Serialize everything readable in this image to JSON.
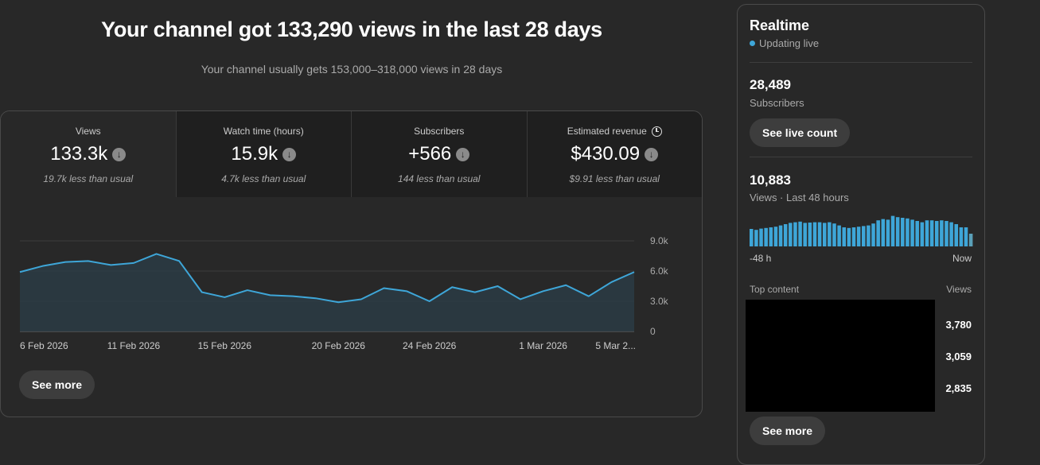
{
  "headline": "Your channel got 133,290 views in the last 28 days",
  "subline": "Your channel usually gets 153,000–318,000 views in 28 days",
  "metrics": [
    {
      "label": "Views",
      "value": "133.3k",
      "note": "19.7k less than usual",
      "icon": "down-arrow-icon"
    },
    {
      "label": "Watch time (hours)",
      "value": "15.9k",
      "note": "4.7k less than usual",
      "icon": "down-arrow-icon"
    },
    {
      "label": "Subscribers",
      "value": "+566",
      "note": "144 less than usual",
      "icon": "down-arrow-icon"
    },
    {
      "label": "Estimated revenue",
      "value": "$430.09",
      "note": "$9.91 less than usual",
      "icon": "down-arrow-icon",
      "label_icon": "clock-icon"
    }
  ],
  "chart_data": {
    "type": "area",
    "x": [
      "6 Feb",
      "7 Feb",
      "8 Feb",
      "9 Feb",
      "10 Feb",
      "11 Feb",
      "12 Feb",
      "13 Feb",
      "14 Feb",
      "15 Feb",
      "16 Feb",
      "17 Feb",
      "18 Feb",
      "19 Feb",
      "20 Feb",
      "21 Feb",
      "22 Feb",
      "23 Feb",
      "24 Feb",
      "25 Feb",
      "26 Feb",
      "27 Feb",
      "28 Feb",
      "1 Mar",
      "2 Mar",
      "3 Mar",
      "4 Mar",
      "5 Mar"
    ],
    "series": [
      {
        "values": [
          5900,
          6500,
          6900,
          7000,
          6600,
          6800,
          7700,
          7000,
          3900,
          3400,
          4100,
          3600,
          3500,
          3300,
          2900,
          3200,
          4300,
          4000,
          3000,
          4400,
          3900,
          4500,
          3200,
          4000,
          4600,
          3500,
          4900,
          5900
        ]
      }
    ],
    "ylim": [
      0,
      9000
    ],
    "y_ticks": [
      "9.0k",
      "6.0k",
      "3.0k",
      "0"
    ],
    "x_tick_labels": [
      {
        "index": 0,
        "label": "6 Feb 2026"
      },
      {
        "index": 5,
        "label": "11 Feb 2026"
      },
      {
        "index": 9,
        "label": "15 Feb 2026"
      },
      {
        "index": 14,
        "label": "20 Feb 2026"
      },
      {
        "index": 18,
        "label": "24 Feb 2026"
      },
      {
        "index": 23,
        "label": "1 Mar 2026"
      },
      {
        "index": 27,
        "label": "5 Mar 2..."
      }
    ],
    "line_color": "#3ea6d8",
    "fill_color": "#2a3b44",
    "grid": true
  },
  "see_more_label": "See more",
  "realtime": {
    "title": "Realtime",
    "status": "Updating live",
    "subscribers_value": "28,489",
    "subscribers_label": "Subscribers",
    "live_count_button": "See live count",
    "views_value": "10,883",
    "views_label": "Views · Last 48 hours",
    "bars": [
      55,
      52,
      56,
      58,
      60,
      62,
      66,
      70,
      74,
      76,
      78,
      74,
      75,
      76,
      76,
      74,
      76,
      72,
      66,
      60,
      58,
      60,
      62,
      64,
      66,
      72,
      82,
      86,
      84,
      96,
      92,
      90,
      88,
      84,
      80,
      76,
      82,
      82,
      80,
      82,
      80,
      76,
      70,
      60,
      60,
      40
    ],
    "bar_color": "#3ea6d8",
    "axis_left": "-48 h",
    "axis_right": "Now",
    "top_content_label": "Top content",
    "top_content_col": "Views",
    "top_content_values": [
      "3,780",
      "3,059",
      "2,835"
    ],
    "see_more_label": "See more"
  }
}
